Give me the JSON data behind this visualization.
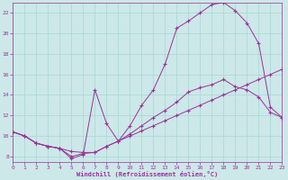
{
  "xlabel": "Windchill (Refroidissement éolien,°C)",
  "xlim": [
    0,
    23
  ],
  "ylim": [
    7.5,
    23.0
  ],
  "xticks": [
    0,
    1,
    2,
    3,
    4,
    5,
    6,
    7,
    8,
    9,
    10,
    11,
    12,
    13,
    14,
    15,
    16,
    17,
    18,
    19,
    20,
    21,
    22,
    23
  ],
  "yticks": [
    8,
    10,
    12,
    14,
    16,
    18,
    20,
    22
  ],
  "bg_color": "#cce8e8",
  "line_color": "#993399",
  "grid_color": "#aad4d4",
  "curve1_x": [
    0,
    1,
    2,
    3,
    4,
    5,
    6,
    7,
    8,
    9,
    10,
    11,
    12,
    13,
    14,
    15,
    16,
    17,
    18,
    19,
    20,
    21,
    22,
    23
  ],
  "curve1_y": [
    10.4,
    10.0,
    9.3,
    9.0,
    8.8,
    8.5,
    8.4,
    8.4,
    9.0,
    9.5,
    10.0,
    10.5,
    11.0,
    11.5,
    12.0,
    12.5,
    13.0,
    13.5,
    14.0,
    14.5,
    15.0,
    15.5,
    16.0,
    16.5
  ],
  "curve2_x": [
    0,
    1,
    2,
    3,
    4,
    5,
    6,
    7,
    8,
    9,
    10,
    11,
    12,
    13,
    14,
    15,
    16,
    17,
    18,
    19,
    20,
    21,
    22,
    23
  ],
  "curve2_y": [
    10.4,
    10.0,
    9.3,
    9.0,
    8.8,
    7.8,
    8.2,
    14.5,
    11.2,
    9.5,
    11.0,
    13.0,
    14.5,
    17.0,
    20.5,
    21.2,
    22.0,
    22.8,
    23.0,
    22.2,
    21.0,
    19.0,
    12.8,
    11.8
  ],
  "curve3_x": [
    0,
    1,
    2,
    3,
    4,
    5,
    6,
    7,
    8,
    9,
    10,
    11,
    12,
    13,
    14,
    15,
    16,
    17,
    18,
    19,
    20,
    21,
    22,
    23
  ],
  "curve3_y": [
    10.4,
    10.0,
    9.3,
    9.0,
    8.8,
    8.0,
    8.3,
    8.4,
    9.0,
    9.5,
    10.2,
    11.0,
    11.8,
    12.5,
    13.3,
    14.3,
    14.7,
    15.0,
    15.5,
    14.8,
    14.5,
    13.8,
    12.3,
    11.8
  ]
}
